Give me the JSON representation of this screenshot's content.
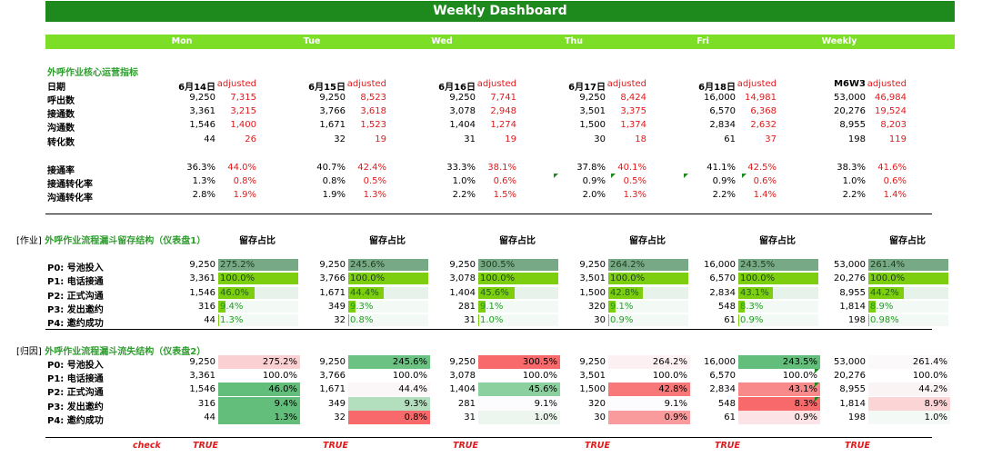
{
  "title": "Weekly Dashboard",
  "days": [
    "Mon",
    "Tue",
    "Wed",
    "Thu",
    "Fri",
    "Weekly"
  ],
  "sec1": {
    "title": "外呼作业核心运营指标",
    "date_label": "日期",
    "dates": [
      "6月14日",
      "6月15日",
      "6月16日",
      "6月17日",
      "6月18日",
      "M6W3"
    ],
    "adjusted_label": "adjusted",
    "rows": [
      {
        "label": "呼出数",
        "vals": [
          "9,250",
          "9,250",
          "9,250",
          "9,250",
          "16,000",
          "53,000"
        ],
        "adj": [
          "7,315",
          "8,523",
          "7,741",
          "8,424",
          "14,981",
          "46,984"
        ]
      },
      {
        "label": "接通数",
        "vals": [
          "3,361",
          "3,766",
          "3,078",
          "3,501",
          "6,570",
          "20,276"
        ],
        "adj": [
          "3,215",
          "3,618",
          "2,948",
          "3,375",
          "6,368",
          "19,524"
        ]
      },
      {
        "label": "沟通数",
        "vals": [
          "1,546",
          "1,671",
          "1,404",
          "1,500",
          "2,834",
          "8,955"
        ],
        "adj": [
          "1,400",
          "1,523",
          "1,274",
          "1,374",
          "2,632",
          "8,203"
        ]
      },
      {
        "label": "转化数",
        "vals": [
          "44",
          "32",
          "31",
          "30",
          "61",
          "198"
        ],
        "adj": [
          "26",
          "19",
          "19",
          "18",
          "37",
          "119"
        ]
      }
    ],
    "rate_rows": [
      {
        "label": "接通率",
        "vals": [
          "36.3%",
          "40.7%",
          "33.3%",
          "37.8%",
          "41.1%",
          "38.3%"
        ],
        "adj": [
          "44.0%",
          "42.4%",
          "38.1%",
          "40.1%",
          "42.5%",
          "41.6%"
        ]
      },
      {
        "label": "接通转化率",
        "vals": [
          "1.3%",
          "0.8%",
          "1.0%",
          "0.9%",
          "0.9%",
          "1.0%"
        ],
        "adj": [
          "0.8%",
          "0.5%",
          "0.6%",
          "0.5%",
          "0.6%",
          "0.6%"
        ]
      },
      {
        "label": "沟通转化率",
        "vals": [
          "2.8%",
          "1.9%",
          "2.2%",
          "2.0%",
          "2.2%",
          "2.2%"
        ],
        "adj": [
          "1.9%",
          "1.3%",
          "1.5%",
          "1.3%",
          "1.4%",
          "1.4%"
        ]
      }
    ]
  },
  "sec2": {
    "tag": "[作业]",
    "title": "外呼作业流程漏斗留存结构（仪表盘1）",
    "col_header": "留存占比",
    "labels": [
      "P0: 号池投入",
      "P1: 电话接通",
      "P2: 正式沟通",
      "P3: 发出邀约",
      "P4: 邀约成功"
    ],
    "days": [
      {
        "vals": [
          "9,250",
          "3,361",
          "1,546",
          "316",
          "44"
        ],
        "pcts": [
          "275.2%",
          "100.0%",
          "46.0%",
          "9.4%",
          "1.3%"
        ],
        "fill": [
          1.0,
          1.0,
          0.46,
          0.094,
          0.013
        ]
      },
      {
        "vals": [
          "9,250",
          "3,766",
          "1,671",
          "349",
          "32"
        ],
        "pcts": [
          "245.6%",
          "100.0%",
          "44.4%",
          "9.3%",
          "0.8%"
        ],
        "fill": [
          1.0,
          1.0,
          0.444,
          0.093,
          0.008
        ]
      },
      {
        "vals": [
          "9,250",
          "3,078",
          "1,404",
          "281",
          "31"
        ],
        "pcts": [
          "300.5%",
          "100.0%",
          "45.6%",
          "9.1%",
          "1.0%"
        ],
        "fill": [
          1.0,
          1.0,
          0.456,
          0.091,
          0.01
        ]
      },
      {
        "vals": [
          "9,250",
          "3,501",
          "1,500",
          "320",
          "30"
        ],
        "pcts": [
          "264.2%",
          "100.0%",
          "42.8%",
          "9.1%",
          "0.9%"
        ],
        "fill": [
          1.0,
          1.0,
          0.428,
          0.091,
          0.009
        ]
      },
      {
        "vals": [
          "16,000",
          "6,570",
          "2,834",
          "548",
          "61"
        ],
        "pcts": [
          "243.5%",
          "100.0%",
          "43.1%",
          "8.3%",
          "0.9%"
        ],
        "fill": [
          1.0,
          1.0,
          0.431,
          0.083,
          0.009
        ]
      },
      {
        "vals": [
          "53,000",
          "20,276",
          "8,955",
          "1,814",
          "198"
        ],
        "pcts": [
          "261.4%",
          "100.0%",
          "44.2%",
          "8.9%",
          "0.98%"
        ],
        "fill": [
          1.0,
          1.0,
          0.442,
          0.089,
          0.0098
        ]
      }
    ]
  },
  "sec3": {
    "tag": "[归因]",
    "title": "外呼作业流程漏斗流失结构（仪表盘2）",
    "labels": [
      "P0: 号池投入",
      "P1: 电话接通",
      "P2: 正式沟通",
      "P3: 发出邀约",
      "P4: 邀约成功"
    ],
    "days": [
      {
        "vals": [
          "9,250",
          "3,361",
          "1,546",
          "316",
          "44"
        ],
        "pcts": [
          "275.2%",
          "100.0%",
          "46.0%",
          "9.4%",
          "1.3%"
        ],
        "colors": [
          "#fbd0d3",
          "#ffffff",
          "#63be7b",
          "#63be7b",
          "#63be7b"
        ]
      },
      {
        "vals": [
          "9,250",
          "3,766",
          "1,671",
          "349",
          "32"
        ],
        "pcts": [
          "245.6%",
          "100.0%",
          "44.4%",
          "9.3%",
          "0.8%"
        ],
        "colors": [
          "#6cc282",
          "#ffffff",
          "#fbf6f7",
          "#b4dfbf",
          "#f8696b"
        ]
      },
      {
        "vals": [
          "9,250",
          "3,078",
          "1,404",
          "281",
          "31"
        ],
        "pcts": [
          "300.5%",
          "100.0%",
          "45.6%",
          "9.1%",
          "1.0%"
        ],
        "colors": [
          "#f8696b",
          "#ffffff",
          "#8dd09f",
          "#fcfcff",
          "#ecf6ef"
        ]
      },
      {
        "vals": [
          "9,250",
          "3,501",
          "1,500",
          "320",
          "30"
        ],
        "pcts": [
          "264.2%",
          "100.0%",
          "42.8%",
          "9.1%",
          "0.9%"
        ],
        "colors": [
          "#fcf0f2",
          "#ffffff",
          "#f8787a",
          "#fcfcff",
          "#f99b9d"
        ]
      },
      {
        "vals": [
          "16,000",
          "6,570",
          "2,834",
          "548",
          "61"
        ],
        "pcts": [
          "243.5%",
          "100.0%",
          "43.1%",
          "8.3%",
          "0.9%"
        ],
        "colors": [
          "#63be7b",
          "#ffffff",
          "#f98a8c",
          "#f8696b",
          "#fce4e6"
        ]
      },
      {
        "vals": [
          "53,000",
          "20,276",
          "8,955",
          "1,814",
          "198"
        ],
        "pcts": [
          "261.4%",
          "100.0%",
          "44.2%",
          "8.9%",
          "1.0%"
        ],
        "colors": [
          "#fcf9fa",
          "#ffffff",
          "#fbf4f5",
          "#fbd4d6",
          "#f3f9f5"
        ]
      }
    ],
    "check_label": "check",
    "check_vals": [
      "TRUE",
      "TRUE",
      "TRUE",
      "TRUE",
      "TRUE",
      "TRUE"
    ]
  }
}
